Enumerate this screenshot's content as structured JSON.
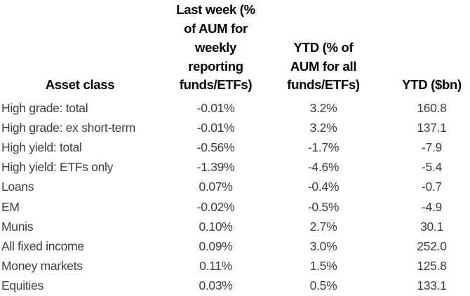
{
  "table": {
    "columns": [
      {
        "key": "asset_class",
        "label": "Asset class"
      },
      {
        "key": "last_week_pct",
        "label": "Last week (% of AUM for weekly reporting funds/ETFs)",
        "lines": [
          "Last week (%",
          "of AUM for",
          "weekly",
          "reporting",
          "funds/ETFs)"
        ]
      },
      {
        "key": "ytd_pct",
        "label": "YTD (% of AUM for all funds/ETFs)",
        "lines": [
          "YTD (% of",
          "AUM for all",
          "funds/ETFs)"
        ]
      },
      {
        "key": "ytd_bn",
        "label": "YTD ($bn)"
      }
    ],
    "rows": [
      {
        "asset_class": "High grade: total",
        "last_week_pct": "-0.01%",
        "ytd_pct": "3.2%",
        "ytd_bn": "160.8"
      },
      {
        "asset_class": "High grade: ex short-term",
        "last_week_pct": "-0.01%",
        "ytd_pct": "3.2%",
        "ytd_bn": "137.1"
      },
      {
        "asset_class": "High yield: total",
        "last_week_pct": "-0.56%",
        "ytd_pct": "-1.7%",
        "ytd_bn": "-7.9"
      },
      {
        "asset_class": "High yield: ETFs only",
        "last_week_pct": "-1.39%",
        "ytd_pct": "-4.6%",
        "ytd_bn": "-5.4"
      },
      {
        "asset_class": "Loans",
        "last_week_pct": "0.07%",
        "ytd_pct": "-0.4%",
        "ytd_bn": "-0.7"
      },
      {
        "asset_class": "EM",
        "last_week_pct": "-0.02%",
        "ytd_pct": "-0.5%",
        "ytd_bn": "-4.9"
      },
      {
        "asset_class": "Munis",
        "last_week_pct": "0.10%",
        "ytd_pct": "2.7%",
        "ytd_bn": "30.1"
      },
      {
        "asset_class": "All fixed income",
        "last_week_pct": "0.09%",
        "ytd_pct": "3.0%",
        "ytd_bn": "252.0"
      },
      {
        "asset_class": "Money markets",
        "last_week_pct": "0.11%",
        "ytd_pct": "1.5%",
        "ytd_bn": "125.8"
      },
      {
        "asset_class": "Equities",
        "last_week_pct": "0.03%",
        "ytd_pct": "0.5%",
        "ytd_bn": "133.1"
      }
    ]
  },
  "colors": {
    "background": "#ffffff",
    "header_text": "#000000",
    "body_text": "#3e3e3e"
  }
}
